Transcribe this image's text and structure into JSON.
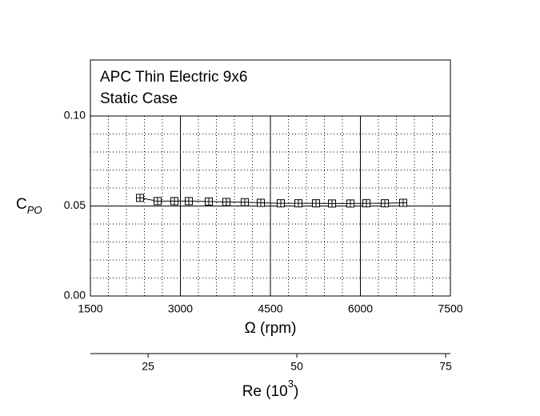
{
  "chart_data": {
    "type": "line",
    "title": [
      "APC Thin Electric 9x6",
      "Static Case"
    ],
    "xlabel": "Ω (rpm)",
    "ylabel": "C",
    "ylabel_sub": "PO",
    "x2label": "Re (10",
    "x2label_sup": "3",
    "x2label_end": ")",
    "xlim": [
      1500,
      7500
    ],
    "xticks": [
      1500,
      3000,
      4500,
      6000,
      7500
    ],
    "ylim": [
      0,
      0.1
    ],
    "yticks": [
      {
        "value": 0,
        "label": "0.00"
      },
      0.05,
      {
        "value": 0.1,
        "label": "0.10"
      }
    ],
    "x2lim": [
      15.3,
      75.8
    ],
    "x2ticks": [
      25,
      50,
      75
    ],
    "grid": true,
    "series": [
      {
        "color": "#000000",
        "marker": "square-plus",
        "x": [
          2327,
          2620,
          2900,
          3140,
          3473,
          3767,
          4073,
          4340,
          4673,
          4967,
          5260,
          5527,
          5833,
          6100,
          6407,
          6713
        ],
        "values": [
          0.0545,
          0.0527,
          0.0527,
          0.0527,
          0.0525,
          0.0522,
          0.0521,
          0.0518,
          0.0515,
          0.0515,
          0.0515,
          0.0514,
          0.0514,
          0.0515,
          0.0515,
          0.0518
        ]
      }
    ]
  }
}
